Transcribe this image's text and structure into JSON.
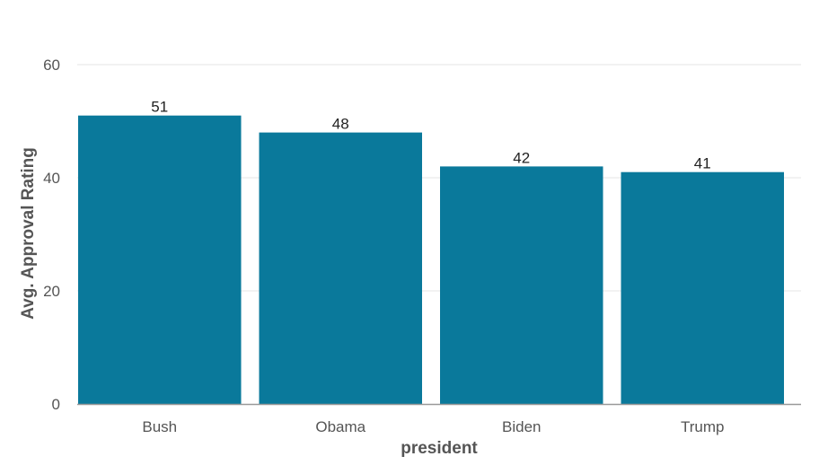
{
  "chart_data": {
    "type": "bar",
    "title": "",
    "xlabel": "president",
    "ylabel": "Avg. Approval Rating",
    "categories": [
      "Bush",
      "Obama",
      "Biden",
      "Trump"
    ],
    "values": [
      51,
      48,
      42,
      41
    ],
    "data_labels": [
      "51",
      "48",
      "42",
      "41"
    ],
    "ylim": [
      0,
      60
    ],
    "yticks": [
      0,
      20,
      40,
      60
    ],
    "ytick_labels": [
      "0",
      "20",
      "40",
      "60"
    ],
    "grid": true,
    "legend": "none",
    "colors": {
      "bar": "#0a799b",
      "grid": "#e6e6e6",
      "baseline": "#999999"
    }
  }
}
